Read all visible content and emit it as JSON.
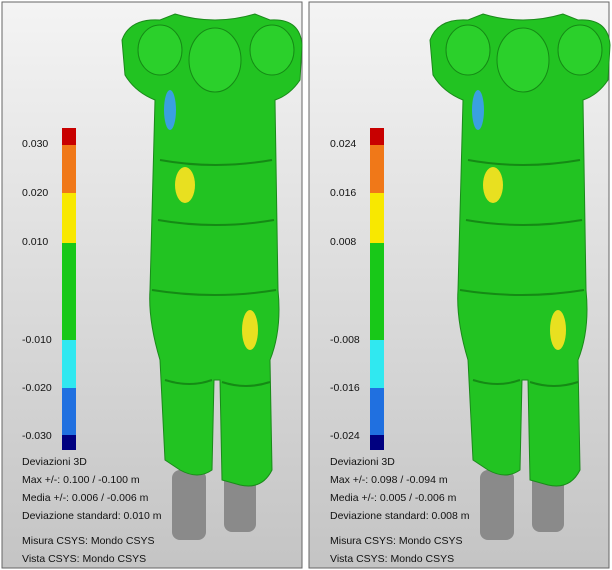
{
  "panels": [
    {
      "scale": [
        "0.030",
        "0.020",
        "0.010",
        "-0.010",
        "-0.020",
        "-0.030"
      ],
      "info": [
        "Deviazioni 3D",
        "Max +/-: 0.100 / -0.100 m",
        "Media +/-: 0.006 / -0.006 m",
        "Deviazione standard: 0.010 m"
      ],
      "footer": [
        "Misura CSYS: Mondo CSYS",
        "Vista CSYS: Mondo CSYS"
      ]
    },
    {
      "scale": [
        "0.024",
        "0.016",
        "0.008",
        "-0.008",
        "-0.016",
        "-0.024"
      ],
      "info": [
        "Deviazioni 3D",
        "Max +/-: 0.098 / -0.094 m",
        "Media +/-: 0.005 / -0.006 m",
        "Deviazione standard: 0.008 m"
      ],
      "footer": [
        "Misura CSYS: Mondo CSYS",
        "Vista CSYS: Mondo CSYS"
      ]
    }
  ]
}
